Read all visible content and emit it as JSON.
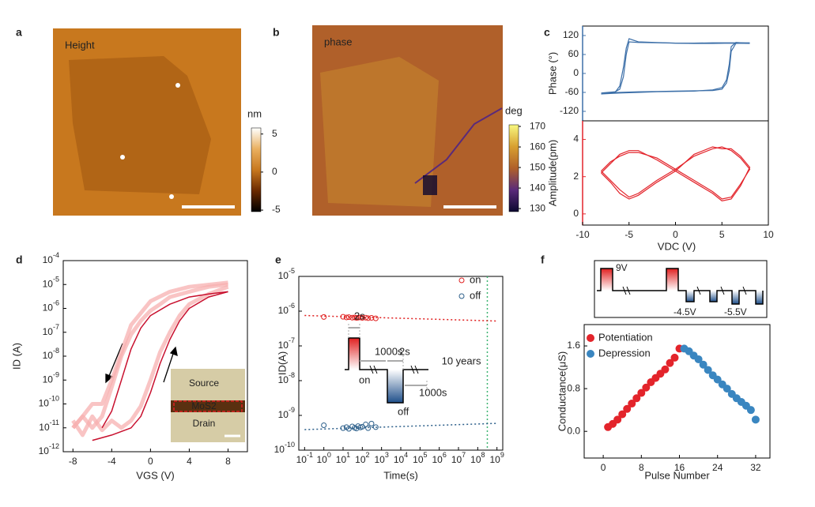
{
  "chart_data": [
    {
      "type": "heatmap",
      "panel": "a",
      "label": "Height",
      "colorbar_label": "nm",
      "clim": [
        -5.2,
        5.8
      ],
      "cticks": [
        5,
        0,
        -5
      ],
      "colormap": [
        "#000000",
        "#6b2a00",
        "#c8781e",
        "#eab060",
        "#ffffff"
      ]
    },
    {
      "type": "heatmap",
      "panel": "b",
      "label": "phase",
      "colorbar_label": "deg",
      "clim": [
        128.5,
        170.8
      ],
      "cticks": [
        170,
        160,
        150,
        140,
        130
      ],
      "colormap": [
        "#0c0830",
        "#5a2a7a",
        "#b0602a",
        "#d8a030",
        "#f8f880"
      ]
    },
    {
      "type": "line",
      "panel": "c",
      "xlabel": "VDC (V)",
      "xlim": [
        -10,
        10
      ],
      "xticks": [
        -10,
        -5,
        0,
        5,
        10
      ],
      "subplots": [
        {
          "ylabel": "Phase (°)",
          "color": "#3c6fa8",
          "ylim": [
            -150,
            150
          ],
          "yticks": [
            120,
            60,
            0,
            -60,
            -120
          ],
          "series": [
            {
              "color": "#3c6fa8",
              "x": [
                -8,
                -6,
                -4,
                -2,
                0,
                2,
                4,
                5,
                5.5,
                5.8,
                6,
                6.5,
                8,
                6,
                4,
                2,
                0,
                -2,
                -4,
                -5,
                -5.3,
                -5.6,
                -6,
                -6.5,
                -8
              ],
              "values": [
                -62,
                -60,
                -58,
                -57,
                -56,
                -55,
                -54,
                -50,
                -30,
                10,
                70,
                95,
                97,
                97,
                97,
                96,
                96,
                97,
                98,
                100,
                60,
                -10,
                -50,
                -58,
                -62
              ]
            },
            {
              "color": "#3c6fa8",
              "x": [
                -8,
                -6,
                -4,
                -2,
                0,
                2,
                4,
                5,
                5.5,
                5.8,
                6,
                6.5,
                8,
                6,
                4,
                2,
                0,
                -2,
                -4,
                -5,
                -5.3,
                -5.6,
                -6,
                -6.5,
                -8
              ],
              "values": [
                -65,
                -62,
                -60,
                -58,
                -57,
                -56,
                -52,
                -45,
                -20,
                30,
                85,
                98,
                95,
                96,
                95,
                95,
                96,
                98,
                100,
                110,
                80,
                20,
                -40,
                -60,
                -65
              ]
            }
          ]
        },
        {
          "ylabel": "Amplitude(pm)",
          "color": "#e3242b",
          "ylim": [
            -0.6,
            5
          ],
          "yticks": [
            0,
            2,
            4
          ],
          "series": [
            {
              "color": "#e3242b",
              "x": [
                -8,
                -7,
                -6,
                -5,
                -4,
                -2,
                0,
                2,
                4,
                5,
                6,
                7,
                8,
                7,
                6,
                5,
                4,
                2,
                0,
                -2,
                -4,
                -5,
                -6,
                -7,
                -8
              ],
              "values": [
                2.3,
                1.8,
                1.3,
                0.9,
                1.1,
                1.8,
                2.4,
                3.1,
                3.5,
                3.6,
                3.4,
                3.0,
                2.4,
                1.6,
                0.9,
                0.8,
                1.2,
                1.8,
                2.4,
                3.0,
                3.3,
                3.3,
                3.1,
                2.8,
                2.3
              ]
            },
            {
              "color": "#e3242b",
              "x": [
                -8,
                -7,
                -6,
                -5,
                -4,
                -2,
                0,
                2,
                4,
                5,
                6,
                7,
                8,
                7,
                6,
                5,
                4,
                2,
                0,
                -2,
                -4,
                -5,
                -6,
                -7,
                -8
              ],
              "values": [
                2.2,
                1.7,
                1.1,
                0.8,
                1.0,
                1.7,
                2.3,
                3.2,
                3.6,
                3.5,
                3.5,
                3.1,
                2.5,
                1.5,
                0.8,
                0.7,
                1.1,
                1.7,
                2.3,
                2.9,
                3.4,
                3.4,
                3.2,
                2.7,
                2.2
              ]
            }
          ]
        }
      ]
    },
    {
      "type": "line",
      "panel": "d",
      "xlabel": "VGS (V)",
      "ylabel": "ID (A)",
      "yscale": "log",
      "xlim": [
        -9,
        10
      ],
      "xticks": [
        -8,
        -4,
        0,
        4,
        8
      ],
      "ylim": [
        1e-12,
        0.0001
      ],
      "yticks": [
        {
          "value": 1e-12,
          "label": "10-12"
        },
        {
          "value": 1e-11,
          "label": "10-11"
        },
        {
          "value": 1e-10,
          "label": "10-10"
        },
        {
          "value": 1e-09,
          "label": "10-9"
        },
        {
          "value": 1e-08,
          "label": "10-8"
        },
        {
          "value": 1e-07,
          "label": "10-7"
        },
        {
          "value": 1e-06,
          "label": "10-6"
        },
        {
          "value": 1e-05,
          "label": "10-5"
        },
        {
          "value": 0.0001,
          "label": "10-4"
        }
      ],
      "series": [
        {
          "color": "#f7b0b0",
          "x": [
            -8,
            -7,
            -6,
            -5,
            -4,
            -3,
            -2,
            -1,
            0,
            1,
            2,
            3,
            4,
            6,
            8
          ],
          "values": [
            2e-11,
            5e-12,
            3e-11,
            8e-12,
            2e-11,
            1e-11,
            2e-11,
            8e-11,
            1e-09,
            1.5e-08,
            1e-07,
            5e-07,
            1.5e-06,
            4e-06,
            8e-06
          ]
        },
        {
          "color": "#f7b0b0",
          "x": [
            8,
            6,
            4,
            2,
            1,
            0,
            -1,
            -2,
            -3,
            -4,
            -5,
            -6,
            -7,
            -8
          ],
          "values": [
            1e-05,
            8e-06,
            5e-06,
            3e-06,
            1.5e-06,
            8e-07,
            3e-07,
            8e-08,
            1e-08,
            5e-10,
            3e-11,
            1e-11,
            3e-11,
            1e-11
          ]
        },
        {
          "color": "#f7b0b0",
          "x": [
            -8,
            -7,
            -6,
            -5,
            -4,
            -2,
            0,
            2,
            4,
            8
          ],
          "values": [
            1e-11,
            3e-11,
            1e-10,
            1e-10,
            1e-09,
            2e-07,
            2e-06,
            5e-06,
            8e-06,
            1.2e-05
          ]
        },
        {
          "color": "#c8102e",
          "x": [
            -6,
            -4,
            -2,
            -1,
            0,
            1,
            2,
            3,
            4,
            6,
            8
          ],
          "values": [
            3e-12,
            5e-12,
            1e-11,
            3e-11,
            3e-10,
            5e-09,
            5e-08,
            3e-07,
            1e-06,
            3e-06,
            5e-06
          ]
        },
        {
          "color": "#c8102e",
          "x": [
            8,
            6,
            4,
            2,
            0,
            -1,
            -2,
            -3,
            -4,
            -5
          ],
          "values": [
            5e-06,
            4e-06,
            3e-06,
            1.5e-06,
            5e-07,
            1.5e-07,
            2e-08,
            1e-09,
            5e-11,
            1e-11
          ]
        }
      ],
      "inset_labels": [
        "Source",
        "MoS2",
        "Drain"
      ]
    },
    {
      "type": "scatter",
      "panel": "e",
      "xlabel": "Time(s)",
      "ylabel": "ID(A)",
      "xscale": "log",
      "yscale": "log",
      "marker": "hollow",
      "legend": "top-right",
      "xlim": [
        0.05,
        2000000000.0
      ],
      "ylim": [
        1e-10,
        1e-05
      ],
      "xticks": [
        {
          "value": 0.1,
          "label": "10-1"
        },
        {
          "value": 1,
          "label": "100"
        },
        {
          "value": 10,
          "label": "101"
        },
        {
          "value": 100,
          "label": "102"
        },
        {
          "value": 1000,
          "label": "103"
        },
        {
          "value": 10000,
          "label": "104"
        },
        {
          "value": 100000,
          "label": "105"
        },
        {
          "value": 1000000,
          "label": "106"
        },
        {
          "value": 10000000,
          "label": "107"
        },
        {
          "value": 100000000,
          "label": "108"
        },
        {
          "value": 1000000000,
          "label": "109"
        }
      ],
      "yticks": [
        {
          "value": 1e-10,
          "label": "10-10"
        },
        {
          "value": 1e-09,
          "label": "10-9"
        },
        {
          "value": 1e-08,
          "label": "10-8"
        },
        {
          "value": 1e-07,
          "label": "10-7"
        },
        {
          "value": 1e-06,
          "label": "10-6"
        },
        {
          "value": 1e-05,
          "label": "10-5"
        }
      ],
      "series": [
        {
          "name": "on",
          "color": "#e02020",
          "x": [
            1,
            10,
            15,
            20,
            30,
            40,
            50,
            60,
            80,
            100,
            150,
            200,
            300,
            500
          ],
          "values": [
            6.8e-07,
            6.9e-07,
            6.6e-07,
            6.7e-07,
            6.5e-07,
            6.6e-07,
            6.4e-07,
            6.5e-07,
            6.6e-07,
            6.4e-07,
            6.5e-07,
            6.3e-07,
            6.4e-07,
            6.2e-07
          ],
          "fit": {
            "x": [
              0.1,
              1000000000
            ],
            "values": [
              7.5e-07,
              5.2e-07
            ]
          }
        },
        {
          "name": "off",
          "color": "#2c5f8a",
          "x": [
            1,
            10,
            15,
            20,
            30,
            40,
            50,
            60,
            80,
            100,
            150,
            200,
            300,
            500
          ],
          "values": [
            5.2e-10,
            4.3e-10,
            4.6e-10,
            4.1e-10,
            4.8e-10,
            4.4e-10,
            4.2e-10,
            4.9e-10,
            4.5e-10,
            4.7e-10,
            5.5e-10,
            4.3e-10,
            5.8e-10,
            4.6e-10
          ],
          "fit": {
            "x": [
              0.1,
              1000000000
            ],
            "values": [
              3.9e-10,
              5.9e-10
            ]
          }
        }
      ],
      "annotation": "10 years",
      "annotation_x": 315360000,
      "annotation_color": "#3cb371",
      "inset_labels": [
        "2s",
        "1000s",
        "2s",
        "on",
        "off",
        "1000s"
      ]
    },
    {
      "type": "scatter",
      "panel": "f",
      "xlabel": "Pulse Number",
      "ylabel": "Conductance(μS)",
      "marker": "filled",
      "legend": "top-left",
      "xlim": [
        -4,
        35
      ],
      "ylim": [
        -0.5,
        2.0
      ],
      "xticks": [
        0,
        8,
        16,
        24,
        32
      ],
      "yticks": [
        {
          "value": 0,
          "label": "0.0"
        },
        0.8,
        1.6
      ],
      "series": [
        {
          "name": "Potentiation",
          "color": "#e3242b",
          "x": [
            1,
            2,
            3,
            4,
            5,
            6,
            7,
            8,
            9,
            10,
            11,
            12,
            13,
            14,
            15,
            16
          ],
          "values": [
            0.08,
            0.14,
            0.22,
            0.32,
            0.42,
            0.52,
            0.62,
            0.72,
            0.82,
            0.92,
            1.0,
            1.08,
            1.16,
            1.28,
            1.38,
            1.55
          ]
        },
        {
          "name": "Depression",
          "color": "#3a86c0",
          "x": [
            17,
            18,
            19,
            20,
            21,
            22,
            23,
            24,
            25,
            26,
            27,
            28,
            29,
            30,
            31,
            32
          ],
          "values": [
            1.55,
            1.5,
            1.42,
            1.35,
            1.25,
            1.15,
            1.05,
            0.97,
            0.88,
            0.8,
            0.7,
            0.62,
            0.55,
            0.48,
            0.4,
            0.22
          ]
        }
      ],
      "pulse_labels": [
        "9V",
        "-4.5V",
        "-5.5V"
      ]
    }
  ]
}
